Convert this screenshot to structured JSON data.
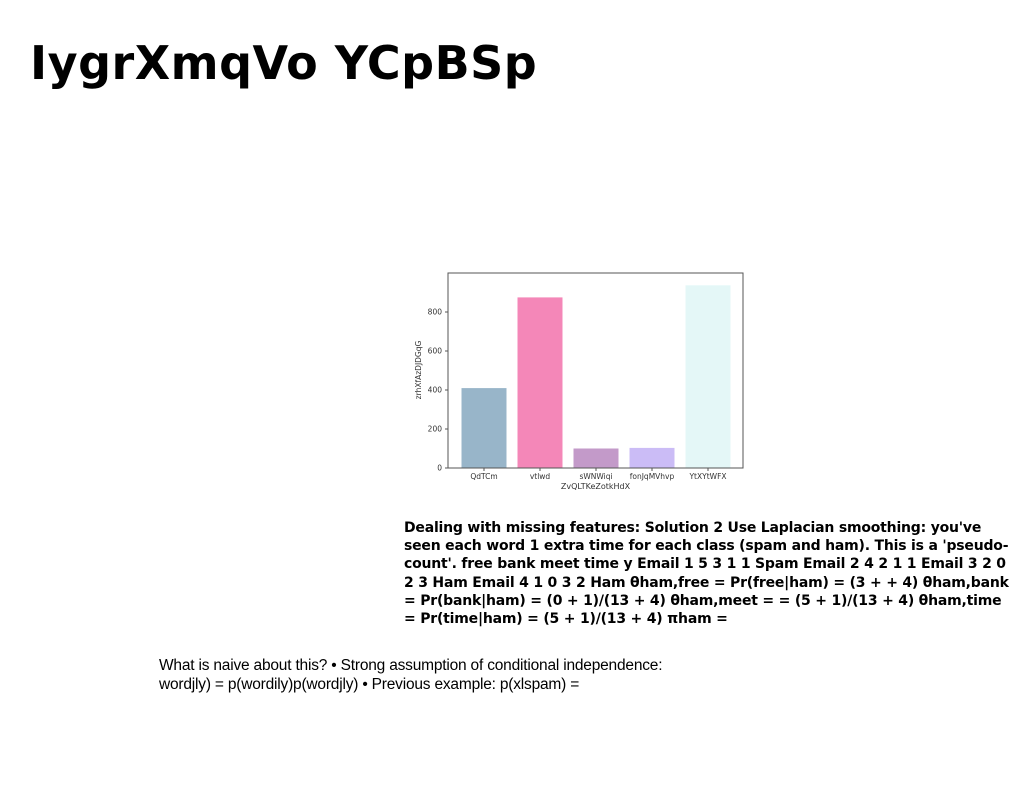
{
  "slide": {
    "title": "IygrXmqVo YCpBSp",
    "paragraph_bold": "Dealing with missing features: Solution 2 Use Laplacian smoothing: you've seen each word 1 extra time for each class (spam and ham). This is a 'pseudo-count'. free bank meet time y Email 1 5 3 1 1 Spam Email 2 4 2 1 1 Email 3 2 0 2 3 Ham Email 4 1 0 3 2 Ham θham,free = Pr(free|ham) = (3 + + 4) θham,bank = Pr(bank|ham) = (0 + 1)/(13 + 4) θham,meet = = (5 + 1)/(13 + 4) θham,time = Pr(time|ham) = (5 + 1)/(13 + 4) πham =",
    "paragraph_plain_line1": "What is naive about this? • Strong assumption of conditional independence:",
    "paragraph_plain_line2": "wordjly) = p(wordily)p(wordjly) • Previous example: p(xlspam) ="
  },
  "chart_data": {
    "type": "bar",
    "categories": [
      "QdTCm",
      "vtlwd",
      "sWNWiqi",
      "fonJqMVhvp",
      "YtXYtWFX"
    ],
    "values": [
      410,
      875,
      100,
      103,
      937
    ],
    "colors": [
      "#98b5c9",
      "#f487b8",
      "#c39ac9",
      "#cbbcf6",
      "#e4f7f7"
    ],
    "xlabel": "ZvQLTKeZotkHdX",
    "ylabel": "zrhXfAzDJDGqG",
    "ylim": [
      0,
      1000
    ],
    "yticks": [
      "0",
      "200",
      "400",
      "600",
      "800"
    ],
    "grid": false,
    "legend": "none"
  }
}
